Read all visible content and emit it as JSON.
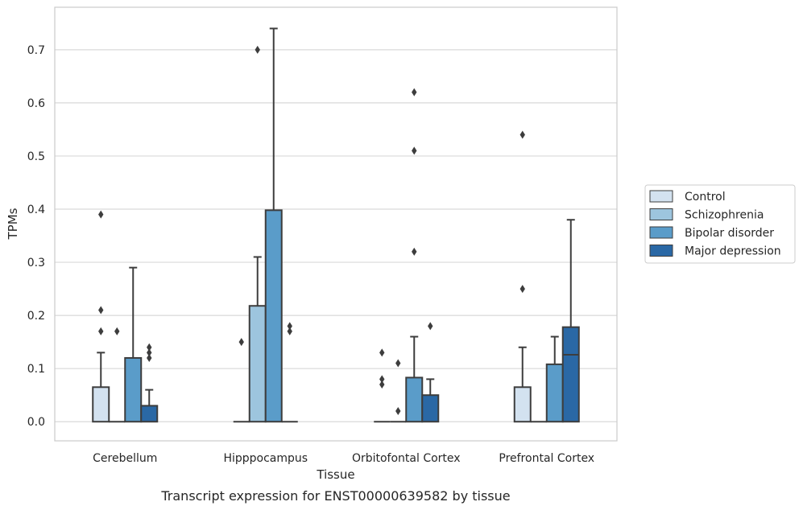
{
  "caption": "Transcript expression for ENST00000639582 by tissue",
  "chart_data": {
    "type": "boxplot",
    "title": "",
    "xlabel": "Tissue",
    "ylabel": "TPMs",
    "ylim": [
      -0.036,
      0.78
    ],
    "yticks": [
      0.0,
      0.1,
      0.2,
      0.3,
      0.4,
      0.5,
      0.6,
      0.7
    ],
    "ytick_labels": [
      "0.0",
      "0.1",
      "0.2",
      "0.3",
      "0.4",
      "0.5",
      "0.6",
      "0.7"
    ],
    "grid": true,
    "legend_position": "right",
    "categories": [
      "Cerebellum",
      "Hipppocampus",
      "Orbitofontal Cortex",
      "Prefrontal Cortex"
    ],
    "series": [
      {
        "name": "Control",
        "color": "#d3e2f0",
        "boxes": [
          {
            "min": 0,
            "q1": 0,
            "median": 0,
            "q3": 0.065,
            "max": 0.13,
            "outliers": [
              0.17,
              0.21,
              0.39
            ]
          },
          {
            "min": 0,
            "q1": 0,
            "median": 0,
            "q3": 0,
            "max": 0,
            "outliers": [
              0.15
            ]
          },
          {
            "min": 0,
            "q1": 0,
            "median": 0,
            "q3": 0,
            "max": 0,
            "outliers": [
              0.07,
              0.08,
              0.13
            ]
          },
          {
            "min": 0,
            "q1": 0,
            "median": 0,
            "q3": 0.065,
            "max": 0.14,
            "outliers": [
              0.25,
              0.54
            ]
          }
        ]
      },
      {
        "name": "Schizophrenia",
        "color": "#9dc5de",
        "boxes": [
          {
            "min": 0,
            "q1": 0,
            "median": 0,
            "q3": 0,
            "max": 0,
            "outliers": [
              0.17
            ]
          },
          {
            "min": 0,
            "q1": 0,
            "median": 0,
            "q3": 0.218,
            "max": 0.31,
            "outliers": [
              0.7
            ]
          },
          {
            "min": 0,
            "q1": 0,
            "median": 0,
            "q3": 0,
            "max": 0,
            "outliers": [
              0.02,
              0.11
            ]
          },
          {
            "min": 0,
            "q1": 0,
            "median": 0,
            "q3": 0,
            "max": 0,
            "outliers": []
          }
        ]
      },
      {
        "name": "Bipolar disorder",
        "color": "#5a9cc9",
        "boxes": [
          {
            "min": 0,
            "q1": 0,
            "median": 0,
            "q3": 0.12,
            "max": 0.29,
            "outliers": []
          },
          {
            "min": 0,
            "q1": 0,
            "median": 0,
            "q3": 0.398,
            "max": 0.74,
            "outliers": []
          },
          {
            "min": 0,
            "q1": 0,
            "median": 0,
            "q3": 0.083,
            "max": 0.16,
            "outliers": [
              0.32,
              0.51,
              0.62
            ]
          },
          {
            "min": 0,
            "q1": 0,
            "median": 0,
            "q3": 0.108,
            "max": 0.16,
            "outliers": []
          }
        ]
      },
      {
        "name": "Major depression",
        "color": "#2a68a5",
        "boxes": [
          {
            "min": 0,
            "q1": 0,
            "median": 0,
            "q3": 0.03,
            "max": 0.06,
            "outliers": [
              0.12,
              0.13,
              0.14
            ]
          },
          {
            "min": 0,
            "q1": 0,
            "median": 0,
            "q3": 0,
            "max": 0,
            "outliers": [
              0.17,
              0.18
            ]
          },
          {
            "min": 0,
            "q1": 0,
            "median": 0,
            "q3": 0.05,
            "max": 0.08,
            "outliers": [
              0.18
            ]
          },
          {
            "min": 0,
            "q1": 0,
            "median": 0.126,
            "q3": 0.178,
            "max": 0.38,
            "outliers": []
          }
        ]
      }
    ]
  }
}
